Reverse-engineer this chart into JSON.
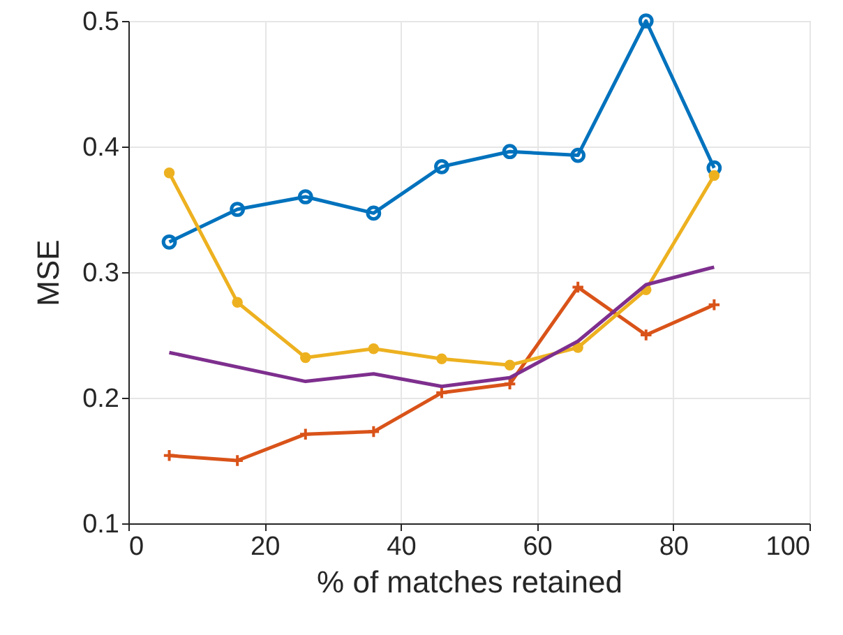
{
  "chart_data": {
    "type": "line",
    "xlabel": "% of matches retained",
    "ylabel": "MSE",
    "xlim": [
      0,
      100
    ],
    "xticks": [
      0,
      20,
      40,
      60,
      80,
      100
    ],
    "ylim": [
      0.1,
      0.5
    ],
    "yticks": [
      0.1,
      0.2,
      0.3,
      0.4,
      0.5
    ],
    "grid": true,
    "x": [
      6,
      16,
      26,
      36,
      46,
      56,
      66,
      76,
      86
    ],
    "series": [
      {
        "color": "#0072bd",
        "marker": "circle",
        "values": [
          0.324,
          0.35,
          0.36,
          0.347,
          0.384,
          0.396,
          0.393,
          0.5,
          0.383
        ]
      },
      {
        "color": "#d95319",
        "marker": "cross",
        "values": [
          0.154,
          0.15,
          0.171,
          0.173,
          0.204,
          0.211,
          0.288,
          0.25,
          0.274
        ]
      },
      {
        "color": "#edb120",
        "marker": "dot",
        "values": [
          0.379,
          0.276,
          0.232,
          0.239,
          0.231,
          0.226,
          0.24,
          0.286,
          0.377
        ]
      },
      {
        "color": "#7e2f8e",
        "marker": "none",
        "x": [
          6,
          26,
          36,
          46,
          56,
          66,
          76,
          86
        ],
        "values": [
          0.236,
          0.213,
          0.219,
          0.209,
          0.216,
          0.245,
          0.29,
          0.304
        ]
      }
    ]
  }
}
